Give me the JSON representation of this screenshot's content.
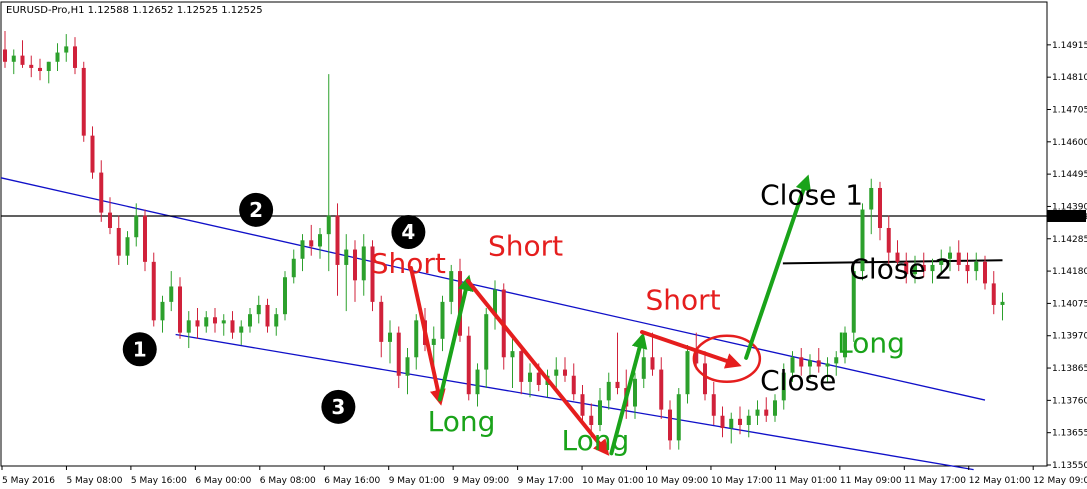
{
  "chart_data": {
    "type": "candlestick",
    "header": "EURUSD-Pro,H1  1.12588 1.12652 1.12525 1.12525",
    "colors": {
      "bull": "#2ca02c",
      "bear": "#d0213a",
      "channel": "#1010c8",
      "hline": "#000000",
      "long": "#1aa31a",
      "short": "#e51e1e",
      "close_black": "#000000",
      "price_tag_bg": "#000000",
      "price_tag_fg": "#ffffff",
      "marker_bg": "#000000",
      "marker_fg": "#ffffff"
    },
    "ylim": [
      1.1355,
      1.1496
    ],
    "y_ticks": [
      "1.14915",
      "1.14810",
      "1.14705",
      "1.14600",
      "1.14495",
      "1.14390",
      "1.14285",
      "1.14180",
      "1.14075",
      "1.13970",
      "1.13865",
      "1.13760",
      "1.13655",
      "1.13550"
    ],
    "x_ticks": [
      "5 May 2016",
      "5 May 08:00",
      "5 May 16:00",
      "6 May 00:00",
      "6 May 08:00",
      "6 May 16:00",
      "9 May 01:00",
      "9 May 09:00",
      "9 May 17:00",
      "10 May 01:00",
      "10 May 09:00",
      "10 May 17:00",
      "11 May 01:00",
      "11 May 09:00",
      "11 May 17:00",
      "12 May 01:00",
      "12 May 09:00"
    ],
    "current_price": {
      "value": 1.14359,
      "label": "1.14359"
    },
    "candles": [
      [
        1.149,
        1.1496,
        1.1484,
        1.1486
      ],
      [
        1.1486,
        1.149,
        1.1482,
        1.1488
      ],
      [
        1.1488,
        1.1493,
        1.1484,
        1.1485
      ],
      [
        1.1485,
        1.1488,
        1.1481,
        1.1484
      ],
      [
        1.1484,
        1.1487,
        1.148,
        1.1483
      ],
      [
        1.1483,
        1.1486,
        1.1479,
        1.1486
      ],
      [
        1.1486,
        1.1492,
        1.1483,
        1.1489
      ],
      [
        1.1489,
        1.1495,
        1.1486,
        1.1491
      ],
      [
        1.1491,
        1.1494,
        1.1482,
        1.1484
      ],
      [
        1.1484,
        1.1486,
        1.146,
        1.1462
      ],
      [
        1.1462,
        1.1465,
        1.1448,
        1.145
      ],
      [
        1.145,
        1.1454,
        1.1434,
        1.1437
      ],
      [
        1.1437,
        1.1442,
        1.143,
        1.1432
      ],
      [
        1.1432,
        1.1436,
        1.142,
        1.1423
      ],
      [
        1.1423,
        1.1431,
        1.142,
        1.1429
      ],
      [
        1.1429,
        1.144,
        1.1426,
        1.1436
      ],
      [
        1.1436,
        1.1438,
        1.1418,
        1.1421
      ],
      [
        1.1421,
        1.1424,
        1.14,
        1.1402
      ],
      [
        1.1402,
        1.141,
        1.1398,
        1.1408
      ],
      [
        1.1408,
        1.1418,
        1.1405,
        1.1413
      ],
      [
        1.1413,
        1.1416,
        1.1396,
        1.1398
      ],
      [
        1.1398,
        1.1405,
        1.1393,
        1.1402
      ],
      [
        1.1402,
        1.1406,
        1.1396,
        1.14
      ],
      [
        1.14,
        1.1405,
        1.1398,
        1.1403
      ],
      [
        1.1403,
        1.1406,
        1.1398,
        1.1401
      ],
      [
        1.1401,
        1.1404,
        1.1397,
        1.1402
      ],
      [
        1.1402,
        1.1405,
        1.1396,
        1.1398
      ],
      [
        1.1398,
        1.1402,
        1.1394,
        1.14
      ],
      [
        1.14,
        1.1406,
        1.1398,
        1.1404
      ],
      [
        1.1404,
        1.141,
        1.1401,
        1.1407
      ],
      [
        1.1407,
        1.1409,
        1.1398,
        1.14
      ],
      [
        1.14,
        1.1406,
        1.1397,
        1.1404
      ],
      [
        1.1404,
        1.1418,
        1.1402,
        1.1416
      ],
      [
        1.1416,
        1.1425,
        1.1414,
        1.1422
      ],
      [
        1.1422,
        1.143,
        1.1418,
        1.1428
      ],
      [
        1.1428,
        1.1433,
        1.1423,
        1.1426
      ],
      [
        1.1426,
        1.1432,
        1.1422,
        1.143
      ],
      [
        1.143,
        1.1482,
        1.1418,
        1.1436
      ],
      [
        1.1436,
        1.144,
        1.141,
        1.142
      ],
      [
        1.142,
        1.143,
        1.1405,
        1.1425
      ],
      [
        1.1425,
        1.1428,
        1.1408,
        1.1415
      ],
      [
        1.1415,
        1.143,
        1.141,
        1.1426
      ],
      [
        1.1426,
        1.1428,
        1.1405,
        1.1408
      ],
      [
        1.1408,
        1.141,
        1.139,
        1.1395
      ],
      [
        1.1395,
        1.1402,
        1.1388,
        1.1398
      ],
      [
        1.1398,
        1.14,
        1.138,
        1.1384
      ],
      [
        1.1384,
        1.1393,
        1.1378,
        1.139
      ],
      [
        1.139,
        1.1404,
        1.1386,
        1.1402
      ],
      [
        1.1402,
        1.1406,
        1.1392,
        1.1394
      ],
      [
        1.1394,
        1.14,
        1.1386,
        1.1396
      ],
      [
        1.1396,
        1.141,
        1.1392,
        1.1408
      ],
      [
        1.1408,
        1.142,
        1.1404,
        1.1418
      ],
      [
        1.1418,
        1.1422,
        1.1395,
        1.1397
      ],
      [
        1.1397,
        1.14,
        1.1376,
        1.1378
      ],
      [
        1.1378,
        1.1388,
        1.1374,
        1.1386
      ],
      [
        1.1386,
        1.1406,
        1.138,
        1.1404
      ],
      [
        1.1404,
        1.1415,
        1.1399,
        1.1412
      ],
      [
        1.1412,
        1.1414,
        1.1386,
        1.139
      ],
      [
        1.139,
        1.1396,
        1.138,
        1.1392
      ],
      [
        1.1392,
        1.1394,
        1.1378,
        1.1382
      ],
      [
        1.1382,
        1.1388,
        1.1377,
        1.1385
      ],
      [
        1.1385,
        1.1388,
        1.1379,
        1.1381
      ],
      [
        1.1381,
        1.1386,
        1.1377,
        1.1384
      ],
      [
        1.1384,
        1.139,
        1.138,
        1.1386
      ],
      [
        1.1386,
        1.139,
        1.1382,
        1.1384
      ],
      [
        1.1384,
        1.1388,
        1.1376,
        1.1378
      ],
      [
        1.1378,
        1.1381,
        1.1368,
        1.1371
      ],
      [
        1.1371,
        1.1375,
        1.1364,
        1.1368
      ],
      [
        1.1368,
        1.138,
        1.1366,
        1.1376
      ],
      [
        1.1376,
        1.1385,
        1.1373,
        1.1382
      ],
      [
        1.1382,
        1.1398,
        1.1378,
        1.138
      ],
      [
        1.138,
        1.1386,
        1.137,
        1.1374
      ],
      [
        1.1374,
        1.1385,
        1.137,
        1.1383
      ],
      [
        1.1383,
        1.1393,
        1.138,
        1.139
      ],
      [
        1.139,
        1.1398,
        1.1384,
        1.1386
      ],
      [
        1.1386,
        1.139,
        1.137,
        1.1373
      ],
      [
        1.1373,
        1.1376,
        1.136,
        1.1363
      ],
      [
        1.1363,
        1.138,
        1.136,
        1.1378
      ],
      [
        1.1378,
        1.1394,
        1.1375,
        1.1392
      ],
      [
        1.1392,
        1.1398,
        1.1386,
        1.1388
      ],
      [
        1.1388,
        1.1392,
        1.1376,
        1.1378
      ],
      [
        1.1378,
        1.1382,
        1.1368,
        1.1371
      ],
      [
        1.1371,
        1.1374,
        1.1364,
        1.1367
      ],
      [
        1.1367,
        1.1372,
        1.1362,
        1.137
      ],
      [
        1.137,
        1.1374,
        1.1365,
        1.1368
      ],
      [
        1.1368,
        1.1373,
        1.1364,
        1.1371
      ],
      [
        1.1371,
        1.1376,
        1.1368,
        1.1373
      ],
      [
        1.1373,
        1.1377,
        1.1369,
        1.1371
      ],
      [
        1.1371,
        1.1378,
        1.1369,
        1.1376
      ],
      [
        1.1376,
        1.1388,
        1.1373,
        1.1385
      ],
      [
        1.1385,
        1.1392,
        1.1382,
        1.139
      ],
      [
        1.139,
        1.1393,
        1.1384,
        1.1387
      ],
      [
        1.1387,
        1.1391,
        1.1383,
        1.1389
      ],
      [
        1.1389,
        1.1393,
        1.1385,
        1.1387
      ],
      [
        1.1387,
        1.139,
        1.1382,
        1.1388
      ],
      [
        1.1388,
        1.1392,
        1.1384,
        1.139
      ],
      [
        1.139,
        1.14,
        1.1388,
        1.1398
      ],
      [
        1.1398,
        1.142,
        1.1395,
        1.1418
      ],
      [
        1.1418,
        1.144,
        1.1415,
        1.1438
      ],
      [
        1.1438,
        1.1448,
        1.143,
        1.1445
      ],
      [
        1.1445,
        1.1447,
        1.1428,
        1.1432
      ],
      [
        1.1432,
        1.1436,
        1.142,
        1.1424
      ],
      [
        1.1424,
        1.1428,
        1.1418,
        1.1421
      ],
      [
        1.1421,
        1.1424,
        1.1414,
        1.1417
      ],
      [
        1.1417,
        1.1423,
        1.1414,
        1.142
      ],
      [
        1.142,
        1.1424,
        1.1416,
        1.1418
      ],
      [
        1.1418,
        1.1422,
        1.1414,
        1.142
      ],
      [
        1.142,
        1.1425,
        1.1417,
        1.1422
      ],
      [
        1.1422,
        1.1426,
        1.1418,
        1.1424
      ],
      [
        1.1424,
        1.1428,
        1.1418,
        1.142
      ],
      [
        1.142,
        1.1424,
        1.1414,
        1.1418
      ],
      [
        1.1418,
        1.1424,
        1.1415,
        1.1421
      ],
      [
        1.1421,
        1.1423,
        1.1412,
        1.1414
      ],
      [
        1.1414,
        1.1418,
        1.1404,
        1.1407
      ],
      [
        1.1407,
        1.1411,
        1.1402,
        1.1408
      ]
    ],
    "channel_upper": {
      "x": [
        -0.5,
        112
      ],
      "y": [
        1.14483,
        1.13761
      ]
    },
    "channel_lower": {
      "x": [
        19.5,
        110.7
      ],
      "y": [
        1.13974,
        1.13535
      ]
    },
    "resistance_line": {
      "x": [
        88.9,
        114
      ],
      "y": [
        1.14205,
        1.14215
      ]
    },
    "circle": {
      "x": 82.5,
      "y": 1.13895
    },
    "arrows": [
      {
        "kind": "long",
        "x1": 69.3,
        "y1": 1.13588,
        "x2": 72.8,
        "y2": 1.13961
      },
      {
        "kind": "short",
        "x1": 72.8,
        "y1": 1.13982,
        "x2": 83.5,
        "y2": 1.13878
      },
      {
        "kind": "long",
        "x1": 84.7,
        "y1": 1.13898,
        "x2": 91.6,
        "y2": 1.14474
      },
      {
        "kind": "short",
        "x1": 46.4,
        "y1": 1.1419,
        "x2": 49.7,
        "y2": 1.13763
      },
      {
        "kind": "long",
        "x1": 49.7,
        "y1": 1.13763,
        "x2": 52.9,
        "y2": 1.14148
      },
      {
        "kind": "short",
        "x1": 52.9,
        "y1": 1.14148,
        "x2": 68.6,
        "y2": 1.13596
      }
    ],
    "annotations": [
      {
        "text": "Short",
        "color": "short",
        "x": 41.8,
        "y": 1.14174
      },
      {
        "text": "Short",
        "color": "short",
        "x": 55.2,
        "y": 1.14231
      },
      {
        "text": "Short",
        "color": "short",
        "x": 73.2,
        "y": 1.14055
      },
      {
        "text": "Long",
        "color": "long",
        "x": 48.3,
        "y": 1.13661
      },
      {
        "text": "Long",
        "color": "long",
        "x": 63.6,
        "y": 1.13598
      },
      {
        "text": "Long",
        "color": "long",
        "x": 95.1,
        "y": 1.13915
      },
      {
        "text": "Close 1",
        "color": "close_black",
        "x": 86.3,
        "y": 1.14396
      },
      {
        "text": "Close 2",
        "color": "close_black",
        "x": 96.5,
        "y": 1.14156
      },
      {
        "text": "Close",
        "color": "close_black",
        "x": 86.3,
        "y": 1.13793
      }
    ],
    "markers": [
      {
        "label": "1",
        "x": 15.4,
        "y": 1.13926
      },
      {
        "label": "2",
        "x": 28.7,
        "y": 1.14379
      },
      {
        "label": "3",
        "x": 38.1,
        "y": 1.13739
      },
      {
        "label": "4",
        "x": 46.1,
        "y": 1.14307
      }
    ]
  }
}
